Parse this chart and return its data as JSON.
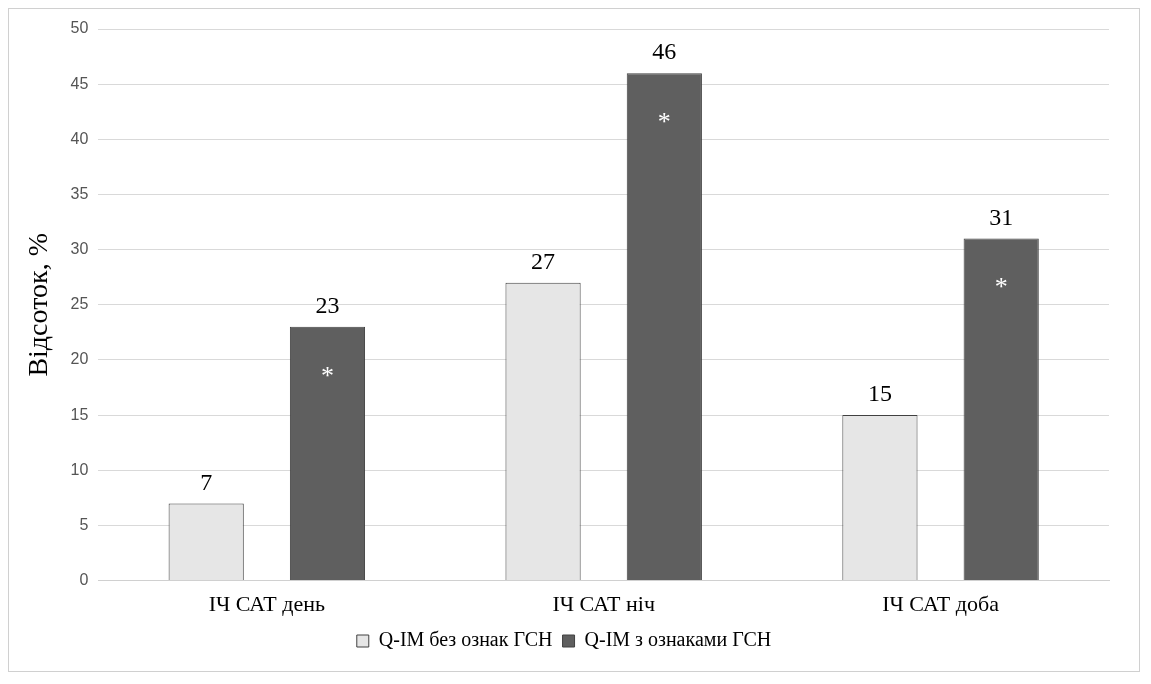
{
  "chart_data": {
    "type": "bar",
    "ylabel": "Відсоток, %",
    "categories": [
      "ІЧ САТ день",
      "ІЧ САТ ніч",
      "ІЧ САТ доба"
    ],
    "series": [
      {
        "name": "Q-IM без ознак ГСН",
        "color": "#e6e6e6",
        "values": [
          7,
          27,
          15
        ]
      },
      {
        "name": "Q-IM з ознаками ГСН",
        "color": "#5f5f5f",
        "values": [
          23,
          46,
          31
        ]
      }
    ],
    "ylim": [
      0,
      50
    ],
    "yticks": [
      0,
      5,
      10,
      15,
      20,
      25,
      30,
      35,
      40,
      45,
      50
    ],
    "grid": "y",
    "legend": "bottom",
    "data_labels": true,
    "annotations": [
      "*",
      "*",
      "*"
    ]
  }
}
